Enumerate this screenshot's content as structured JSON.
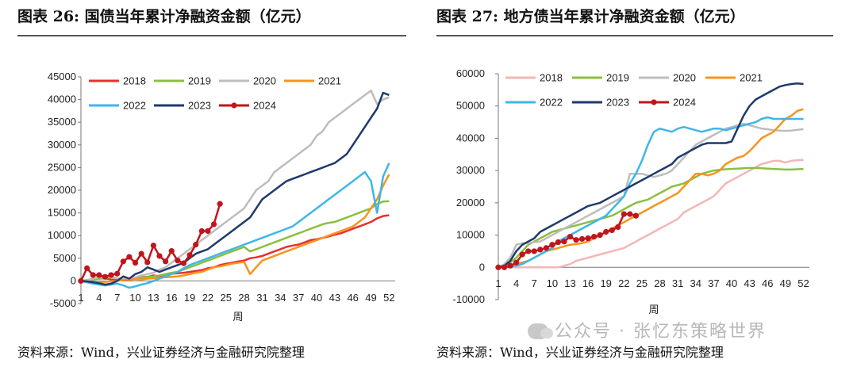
{
  "titles": {
    "left": "图表 26:  国债当年累计净融资金额（亿元）",
    "right": "图表 27:  地方债当年累计净融资金额（亿元）"
  },
  "sources": {
    "left": "资料来源：Wind，兴业证券经济与金融研究院整理",
    "right": "资料来源：Wind，兴业证券经济与金融研究院整理"
  },
  "watermark": "公众号 · 张忆东策略世界",
  "chart_data": [
    {
      "type": "line",
      "xlabel": "周",
      "ylabel": "",
      "ylim": [
        -5000,
        45000
      ],
      "yticks": [
        -5000,
        0,
        5000,
        10000,
        15000,
        20000,
        25000,
        30000,
        35000,
        40000,
        45000
      ],
      "xlim": [
        1,
        53
      ],
      "xticks": [
        1,
        4,
        7,
        10,
        13,
        16,
        19,
        22,
        25,
        28,
        31,
        34,
        37,
        40,
        43,
        46,
        49,
        52
      ],
      "grid": false,
      "legend": "top",
      "series": [
        {
          "name": "2018",
          "color": "#e8312f",
          "values": [
            0,
            200,
            400,
            500,
            600,
            300,
            200,
            100,
            200,
            600,
            800,
            900,
            1200,
            1000,
            1500,
            1600,
            1700,
            1800,
            2000,
            2200,
            2400,
            2800,
            3000,
            3500,
            3800,
            4000,
            4300,
            4500,
            5000,
            5200,
            5500,
            6000,
            6500,
            7000,
            7500,
            7800,
            8000,
            8500,
            9000,
            9200,
            9500,
            9800,
            10200,
            10500,
            11000,
            11500,
            12000,
            12500,
            13000,
            13800,
            14300,
            14500
          ]
        },
        {
          "name": "2019",
          "color": "#8cbf3f",
          "values": [
            0,
            100,
            300,
            500,
            700,
            800,
            600,
            400,
            300,
            500,
            700,
            900,
            1000,
            1200,
            1500,
            1800,
            2000,
            2500,
            3000,
            3500,
            4000,
            4500,
            5000,
            5500,
            6000,
            6500,
            7000,
            7500,
            6500,
            7000,
            7500,
            8000,
            8500,
            9000,
            9500,
            10000,
            10500,
            11000,
            11500,
            12000,
            12500,
            12800,
            13000,
            13500,
            14000,
            14500,
            15000,
            15500,
            16000,
            17000,
            17500,
            17600
          ]
        },
        {
          "name": "2020",
          "color": "#bdbdbd",
          "values": [
            0,
            200,
            500,
            800,
            1000,
            800,
            600,
            400,
            500,
            800,
            1200,
            1500,
            1800,
            2500,
            3000,
            4000,
            5000,
            6000,
            7000,
            8000,
            9000,
            10000,
            11000,
            12000,
            13000,
            14000,
            15000,
            16000,
            18000,
            20000,
            21000,
            22000,
            24000,
            25000,
            26000,
            27000,
            28000,
            29000,
            30000,
            32000,
            33000,
            35000,
            36000,
            37000,
            38000,
            39000,
            40000,
            41000,
            42000,
            39000,
            40000,
            40500
          ]
        },
        {
          "name": "2021",
          "color": "#f7941d",
          "values": [
            0,
            -200,
            -400,
            -300,
            -200,
            -100,
            0,
            200,
            300,
            400,
            300,
            500,
            600,
            700,
            800,
            900,
            1000,
            1200,
            1500,
            1800,
            2000,
            2500,
            3000,
            3200,
            3500,
            3800,
            4000,
            4200,
            1500,
            3000,
            4500,
            5000,
            5500,
            6000,
            6500,
            7000,
            7500,
            8000,
            8500,
            9000,
            9500,
            10000,
            10500,
            11000,
            11500,
            12000,
            13000,
            14000,
            16000,
            18000,
            21000,
            23500
          ]
        },
        {
          "name": "2022",
          "color": "#3fb6e8",
          "values": [
            0,
            -300,
            -600,
            -800,
            -1000,
            -800,
            -600,
            -1000,
            -1500,
            -1200,
            -800,
            -500,
            0,
            500,
            1000,
            1500,
            2000,
            2800,
            3500,
            4000,
            4500,
            5000,
            5500,
            6000,
            6500,
            7000,
            7500,
            8000,
            8500,
            9000,
            9500,
            10000,
            10500,
            11000,
            11500,
            12000,
            13000,
            14000,
            15000,
            16000,
            17000,
            18000,
            19000,
            20000,
            21000,
            22000,
            23000,
            24000,
            22000,
            15000,
            23000,
            26000
          ]
        },
        {
          "name": "2023",
          "color": "#1f3a6b",
          "values": [
            0,
            -100,
            -300,
            -500,
            -800,
            -600,
            0,
            1000,
            500,
            1500,
            2000,
            3000,
            2500,
            2000,
            2500,
            3000,
            3500,
            4000,
            5000,
            6000,
            6500,
            7000,
            8000,
            9000,
            10000,
            11000,
            12000,
            13000,
            14000,
            16000,
            18000,
            19000,
            20000,
            21000,
            22000,
            22500,
            23000,
            23500,
            24000,
            24500,
            25000,
            25500,
            26000,
            27000,
            28000,
            30000,
            32000,
            34000,
            36000,
            38000,
            41500,
            41000
          ]
        },
        {
          "name": "2024",
          "color": "#c0151b",
          "marker": true,
          "values": [
            0,
            2800,
            1300,
            1300,
            900,
            1300,
            1600,
            4300,
            5300,
            4000,
            6000,
            4100,
            7800,
            5500,
            4300,
            6600,
            4500,
            3900,
            5700,
            8000,
            11000,
            11000,
            12500,
            17000
          ]
        }
      ]
    },
    {
      "type": "line",
      "xlabel": "周",
      "ylabel": "",
      "ylim": [
        -10000,
        60000
      ],
      "yticks": [
        -10000,
        0,
        10000,
        20000,
        30000,
        40000,
        50000,
        60000
      ],
      "xlim": [
        1,
        53
      ],
      "xticks": [
        1,
        4,
        7,
        10,
        13,
        16,
        19,
        22,
        25,
        28,
        31,
        34,
        37,
        40,
        43,
        46,
        49,
        52
      ],
      "grid": false,
      "legend": "top",
      "series": [
        {
          "name": "2018",
          "color": "#f2b7b5",
          "values": [
            0,
            0,
            0,
            0,
            0,
            0,
            0,
            0,
            0,
            0,
            0,
            500,
            1000,
            2000,
            2500,
            3000,
            3500,
            4000,
            4500,
            5000,
            5500,
            6000,
            7000,
            8000,
            9000,
            10000,
            11000,
            12000,
            13000,
            14000,
            15000,
            17000,
            18000,
            19000,
            20000,
            21000,
            22000,
            24000,
            26000,
            27000,
            28000,
            29000,
            30000,
            31000,
            32000,
            32500,
            33000,
            33000,
            32500,
            33000,
            33200,
            33300
          ]
        },
        {
          "name": "2019",
          "color": "#8cbf3f",
          "values": [
            0,
            500,
            1500,
            3000,
            5000,
            7000,
            8000,
            9000,
            10000,
            11000,
            11500,
            12000,
            12500,
            13000,
            13500,
            14000,
            14500,
            15000,
            15500,
            16000,
            17000,
            18000,
            19000,
            20000,
            20500,
            21000,
            22000,
            23000,
            24000,
            25000,
            25500,
            26000,
            27000,
            28000,
            29000,
            29500,
            30000,
            30200,
            30400,
            30500,
            30600,
            30700,
            30800,
            30800,
            30700,
            30600,
            30500,
            30400,
            30300,
            30300,
            30400,
            30500
          ]
        },
        {
          "name": "2020",
          "color": "#bdbdbd",
          "values": [
            0,
            1000,
            3000,
            7000,
            7500,
            7500,
            7800,
            8000,
            9000,
            10000,
            11000,
            12000,
            13000,
            14000,
            15000,
            16000,
            17000,
            18000,
            19000,
            20000,
            21000,
            22000,
            29000,
            29000,
            29000,
            28500,
            28000,
            28500,
            29000,
            30000,
            32000,
            34000,
            36000,
            38000,
            39000,
            40000,
            41000,
            42000,
            43000,
            43500,
            44000,
            44500,
            44000,
            43500,
            43000,
            42800,
            42500,
            42400,
            42300,
            42400,
            42600,
            42800
          ]
        },
        {
          "name": "2021",
          "color": "#f7941d",
          "values": [
            0,
            0,
            500,
            1000,
            1500,
            2000,
            3000,
            4000,
            5000,
            5500,
            6000,
            6500,
            7000,
            7200,
            7500,
            8000,
            9000,
            10000,
            11000,
            12000,
            13000,
            14000,
            15000,
            16000,
            17000,
            18000,
            19000,
            20000,
            21000,
            22000,
            23000,
            25000,
            27000,
            29000,
            29000,
            28500,
            29000,
            30000,
            32000,
            33000,
            34000,
            34500,
            36000,
            38000,
            40000,
            41000,
            42000,
            44000,
            46000,
            47000,
            48500,
            49000
          ]
        },
        {
          "name": "2022",
          "color": "#3fb6e8",
          "values": [
            0,
            0,
            200,
            500,
            1000,
            2000,
            3000,
            4000,
            5000,
            6000,
            8000,
            9000,
            10000,
            11000,
            12000,
            13000,
            14000,
            15000,
            16000,
            18000,
            20000,
            22000,
            26000,
            29000,
            33000,
            38000,
            42000,
            43000,
            42500,
            42000,
            43000,
            43500,
            43000,
            42500,
            42000,
            42500,
            43000,
            43000,
            42500,
            43000,
            43500,
            44000,
            44500,
            45000,
            46000,
            46500,
            46000,
            46000,
            46000,
            46000,
            46000,
            46000
          ]
        },
        {
          "name": "2023",
          "color": "#1f3a6b",
          "values": [
            0,
            500,
            2000,
            5000,
            7000,
            8000,
            9000,
            11000,
            12000,
            13000,
            14000,
            15000,
            16000,
            17000,
            18000,
            19000,
            19500,
            20000,
            21000,
            22000,
            23000,
            24000,
            25000,
            26000,
            27000,
            28000,
            29000,
            30000,
            31000,
            32000,
            34000,
            35000,
            36000,
            37000,
            38000,
            38500,
            38500,
            38500,
            38500,
            39000,
            43000,
            47000,
            50000,
            52000,
            53000,
            54000,
            55000,
            56000,
            56500,
            56800,
            57000,
            56800
          ]
        },
        {
          "name": "2024",
          "color": "#c0151b",
          "marker": true,
          "values": [
            0,
            0,
            500,
            1500,
            4000,
            5000,
            5000,
            5500,
            6000,
            7000,
            7800,
            8000,
            9500,
            8500,
            8800,
            9000,
            9500,
            10000,
            11000,
            11500,
            12500,
            16500,
            16500,
            16000
          ]
        }
      ]
    }
  ]
}
